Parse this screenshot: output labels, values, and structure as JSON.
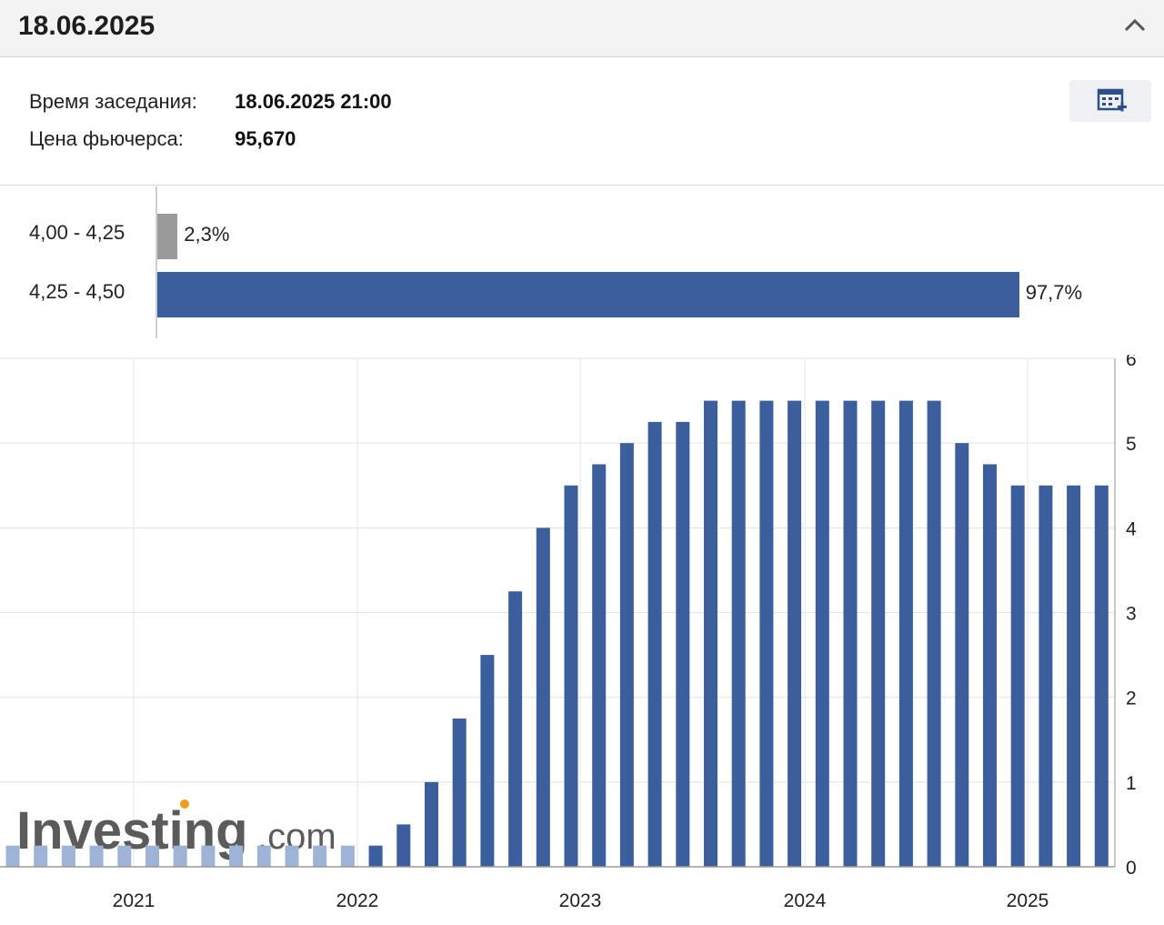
{
  "header": {
    "title": "18.06.2025"
  },
  "info": {
    "meeting_time_label": "Время заседания:",
    "meeting_time_value": "18.06.2025 21:00",
    "futures_price_label": "Цена фьючерса:",
    "futures_price_value": "95,670"
  },
  "probabilities": [
    {
      "range": "4,00 - 4,25",
      "pct_label": "2,3%",
      "value": 2.3,
      "color": "#9a9a9a"
    },
    {
      "range": "4,25 - 4,50",
      "pct_label": "97,7%",
      "value": 97.7,
      "color": "#3a5f9c"
    }
  ],
  "chart_data": {
    "type": "bar",
    "title": "",
    "xlabel": "",
    "ylabel": "",
    "ylim": [
      0,
      6
    ],
    "yticks": [
      "0",
      "1",
      "2",
      "3",
      "4",
      "5",
      "6"
    ],
    "xticks": [
      "2021",
      "2022",
      "2023",
      "2024",
      "2025"
    ],
    "grid": true,
    "values": [
      0.25,
      0.25,
      0.25,
      0.25,
      0.25,
      0.25,
      0.25,
      0.25,
      0.25,
      0.25,
      0.25,
      0.25,
      0.25,
      0.25,
      0.5,
      1.0,
      1.75,
      2.5,
      3.25,
      4.0,
      4.5,
      4.75,
      5.0,
      5.25,
      5.25,
      5.5,
      5.5,
      5.5,
      5.5,
      5.5,
      5.5,
      5.5,
      5.5,
      5.5,
      5.0,
      4.75,
      4.5,
      4.5,
      4.5,
      4.5
    ],
    "colors": {
      "past": "#9db4d6",
      "current": "#3a5f9c"
    }
  },
  "watermark": {
    "brand": "Investing",
    "suffix": ".com"
  }
}
